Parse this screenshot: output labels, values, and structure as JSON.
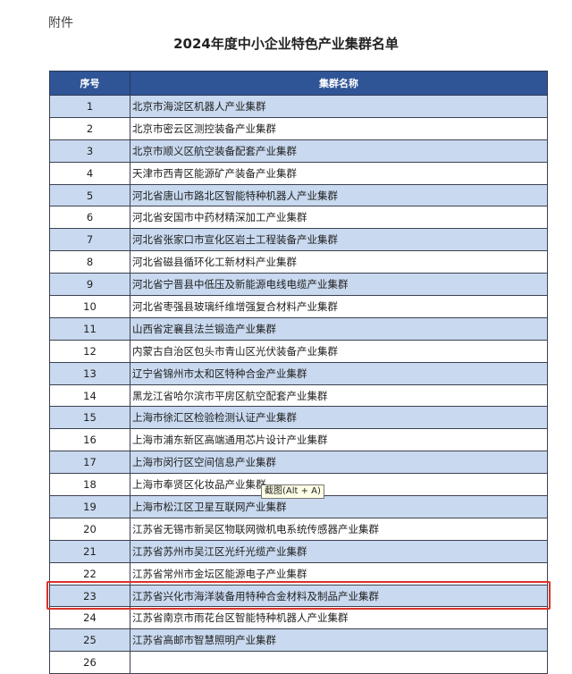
{
  "attachment_label": "附件",
  "title": "2024年度中小企业特色产业集群名单",
  "table": {
    "headers": [
      "序号",
      "集群名称"
    ],
    "rows": [
      [
        "1",
        "北京市海淀区机器人产业集群"
      ],
      [
        "2",
        "北京市密云区测控装备产业集群"
      ],
      [
        "3",
        "北京市顺义区航空装备配套产业集群"
      ],
      [
        "4",
        "天津市西青区能源矿产装备产业集群"
      ],
      [
        "5",
        "河北省唐山市路北区智能特种机器人产业集群"
      ],
      [
        "6",
        "河北省安国市中药材精深加工产业集群"
      ],
      [
        "7",
        "河北省张家口市宣化区岩土工程装备产业集群"
      ],
      [
        "8",
        "河北省磁县循环化工新材料产业集群"
      ],
      [
        "9",
        "河北省宁晋县中低压及新能源电线电缆产业集群"
      ],
      [
        "10",
        "河北省枣强县玻璃纤维增强复合材料产业集群"
      ],
      [
        "11",
        "山西省定襄县法兰锻造产业集群"
      ],
      [
        "12",
        "内蒙古自治区包头市青山区光伏装备产业集群"
      ],
      [
        "13",
        "辽宁省锦州市太和区特种合金产业集群"
      ],
      [
        "14",
        "黑龙江省哈尔滨市平房区航空配套产业集群"
      ],
      [
        "15",
        "上海市徐汇区检验检测认证产业集群"
      ],
      [
        "16",
        "上海市浦东新区高端通用芯片设计产业集群"
      ],
      [
        "17",
        "上海市闵行区空间信息产业集群"
      ],
      [
        "18",
        "上海市奉贤区化妆品产业集群"
      ],
      [
        "19",
        "上海市松江区卫星互联网产业集群"
      ],
      [
        "20",
        "江苏省无锡市新吴区物联网微机电系统传感器产业集群"
      ],
      [
        "21",
        "江苏省苏州市吴江区光纤光缆产业集群"
      ],
      [
        "22",
        "江苏省常州市金坛区能源电子产业集群"
      ],
      [
        "23",
        "江苏省兴化市海洋装备用特种合金材料及制品产业集群"
      ],
      [
        "24",
        "江苏省南京市雨花台区智能特种机器人产业集群"
      ],
      [
        "25",
        "江苏省高邮市智慧照明产业集群"
      ],
      [
        "26",
        ""
      ]
    ]
  },
  "highlighted_row": "23",
  "tooltip": "截图(Alt + A)",
  "colors": {
    "header": "#2f5597",
    "stripe": "#c9d9ef",
    "highlight": "#d9342b"
  }
}
